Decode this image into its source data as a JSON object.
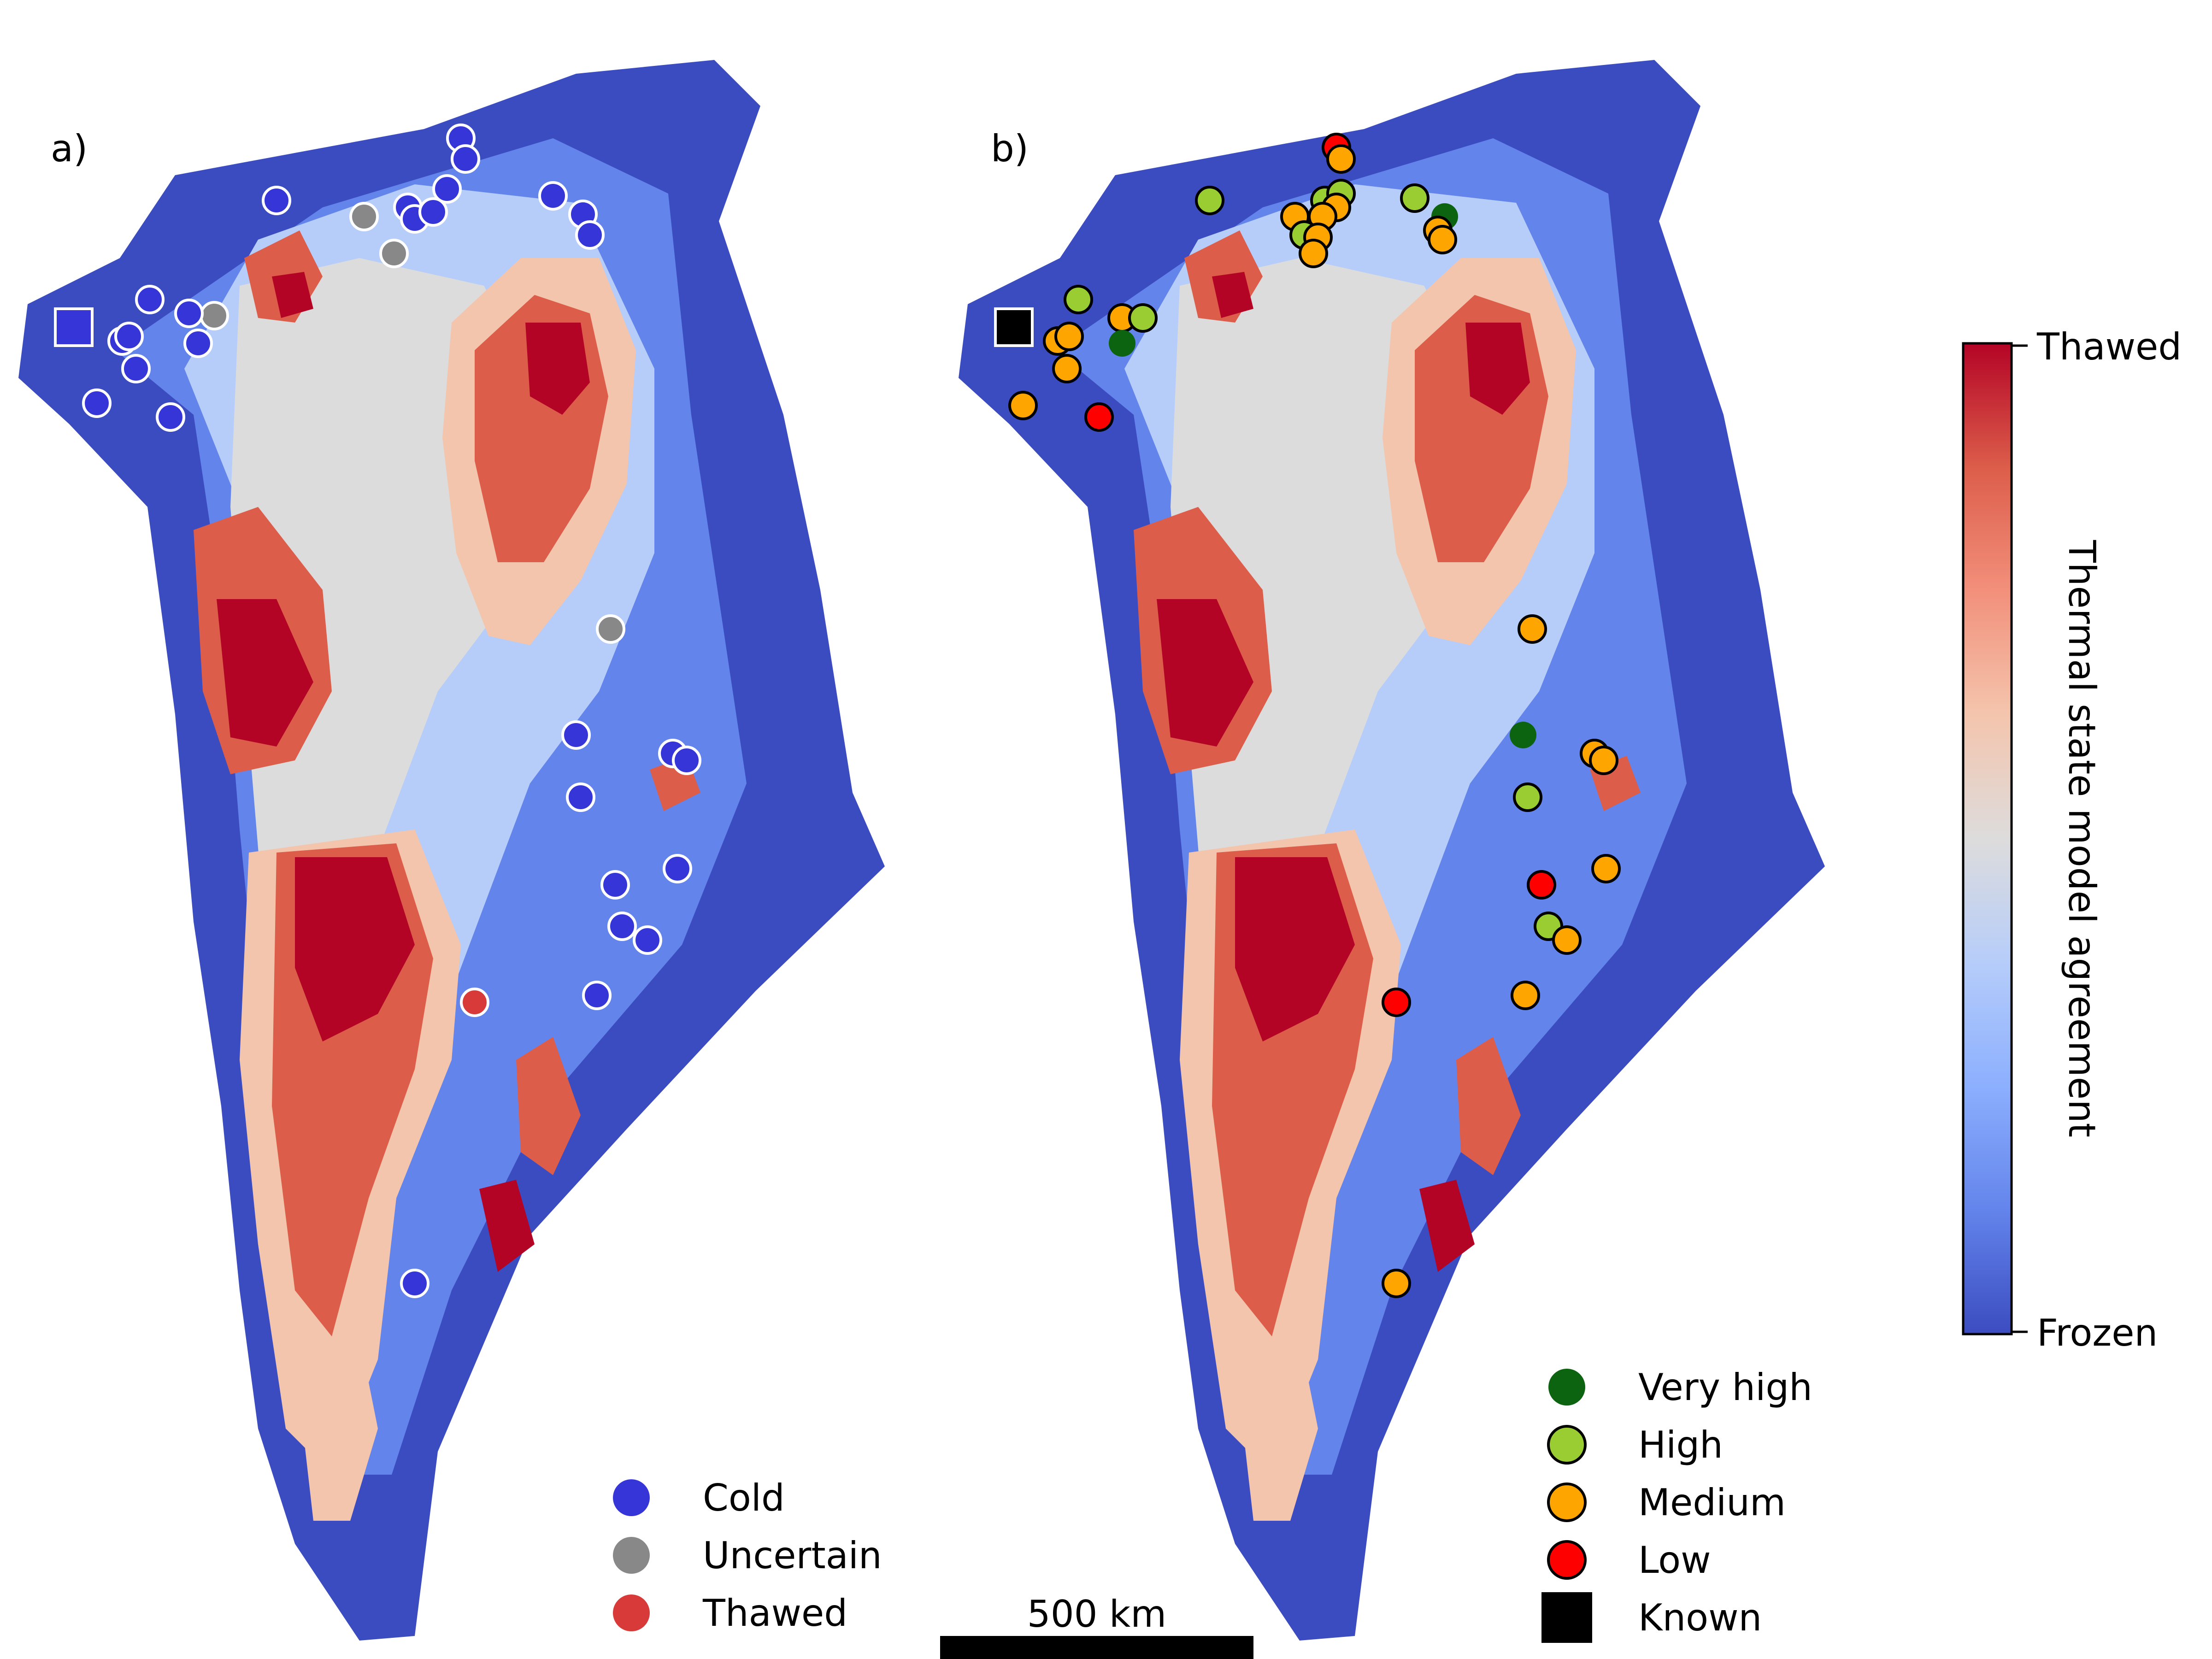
{
  "panels": [
    {
      "id": "a",
      "label": "a)"
    },
    {
      "id": "b",
      "label": "b)"
    }
  ],
  "legend_a": [
    {
      "label": "Cold",
      "color": "#3636d8",
      "shape": "circle"
    },
    {
      "label": "Uncertain",
      "color": "#888888",
      "shape": "circle"
    },
    {
      "label": "Thawed",
      "color": "#d83a3a",
      "shape": "circle"
    }
  ],
  "legend_b": [
    {
      "label": "Very high",
      "color": "#0d6410",
      "shape": "circle"
    },
    {
      "label": "High",
      "color": "#9acd32",
      "shape": "circle"
    },
    {
      "label": "Medium",
      "color": "#ffa500",
      "shape": "circle"
    },
    {
      "label": "Low",
      "color": "#ff0000",
      "shape": "circle"
    },
    {
      "label": "Known",
      "color": "#000000",
      "shape": "square"
    }
  ],
  "scale_bar": {
    "label": "500 km"
  },
  "colorbar": {
    "title": "Thermal state model agreement",
    "top_label": "Thawed",
    "bottom_label": "Frozen",
    "colors": [
      "#b40426",
      "#dc5d4a",
      "#f2907b",
      "#f4c5ad",
      "#dddcdc",
      "#b6cdfa",
      "#8caffe",
      "#6384eb",
      "#3b4cc0"
    ]
  },
  "map_colors": {
    "frozen": "#3b4cc0",
    "frozen_mid": "#6384eb",
    "light_blue": "#b6cdfa",
    "neutral": "#dddcdc",
    "light_red": "#f4c5ad",
    "mid_red": "#dc5d4a",
    "thawed": "#b40426"
  },
  "icons": {
    "land": "greenland-icon"
  }
}
